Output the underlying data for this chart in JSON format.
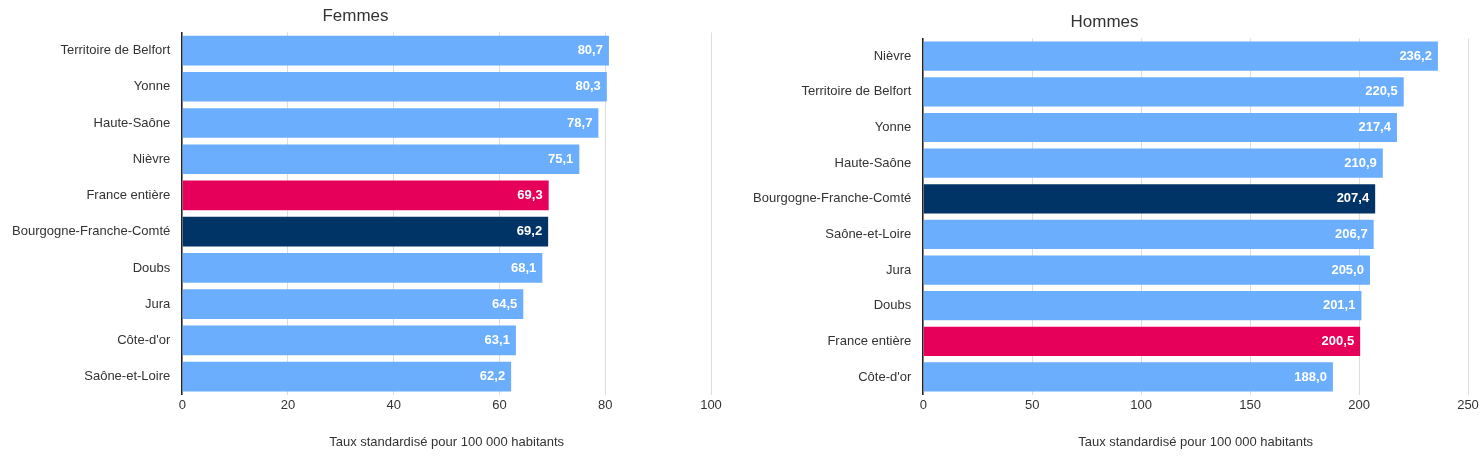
{
  "chart_data": [
    {
      "type": "bar",
      "orientation": "horizontal",
      "title": "Femmes",
      "xlabel": "Taux standardisé pour 100 000 habitants",
      "categories": [
        "Territoire de Belfort",
        "Yonne",
        "Haute-Saône",
        "Nièvre",
        "France entière",
        "Bourgogne-Franche-Comté",
        "Doubs",
        "Jura",
        "Côte-d'or",
        "Saône-et-Loire"
      ],
      "values": [
        80.7,
        80.3,
        78.7,
        75.1,
        69.3,
        69.2,
        68.1,
        64.5,
        63.1,
        62.2
      ],
      "value_labels": [
        "80,7",
        "80,3",
        "78,7",
        "75,1",
        "69,3",
        "69,2",
        "68,1",
        "64,5",
        "63,1",
        "62,2"
      ],
      "colors": [
        "#6aaefd",
        "#6aaefd",
        "#6aaefd",
        "#6aaefd",
        "#e6005a",
        "#003366",
        "#6aaefd",
        "#6aaefd",
        "#6aaefd",
        "#6aaefd"
      ],
      "xlim": [
        0,
        100
      ],
      "xticks": [
        0,
        20,
        40,
        60,
        80,
        100
      ],
      "grid": "x",
      "legend": false
    },
    {
      "type": "bar",
      "orientation": "horizontal",
      "title": "Hommes",
      "xlabel": "Taux standardisé pour 100 000 habitants",
      "categories": [
        "Nièvre",
        "Territoire de Belfort",
        "Yonne",
        "Haute-Saône",
        "Bourgogne-Franche-Comté",
        "Saône-et-Loire",
        "Jura",
        "Doubs",
        "France entière",
        "Côte-d'or"
      ],
      "values": [
        236.2,
        220.5,
        217.4,
        210.9,
        207.4,
        206.7,
        205.0,
        201.1,
        200.5,
        188.0
      ],
      "value_labels": [
        "236,2",
        "220,5",
        "217,4",
        "210,9",
        "207,4",
        "206,7",
        "205,0",
        "201,1",
        "200,5",
        "188,0"
      ],
      "colors": [
        "#6aaefd",
        "#6aaefd",
        "#6aaefd",
        "#6aaefd",
        "#003366",
        "#6aaefd",
        "#6aaefd",
        "#6aaefd",
        "#e6005a",
        "#6aaefd"
      ],
      "xlim": [
        0,
        250
      ],
      "xticks": [
        0,
        50,
        100,
        150,
        200,
        250
      ],
      "grid": "x",
      "legend": false
    }
  ]
}
